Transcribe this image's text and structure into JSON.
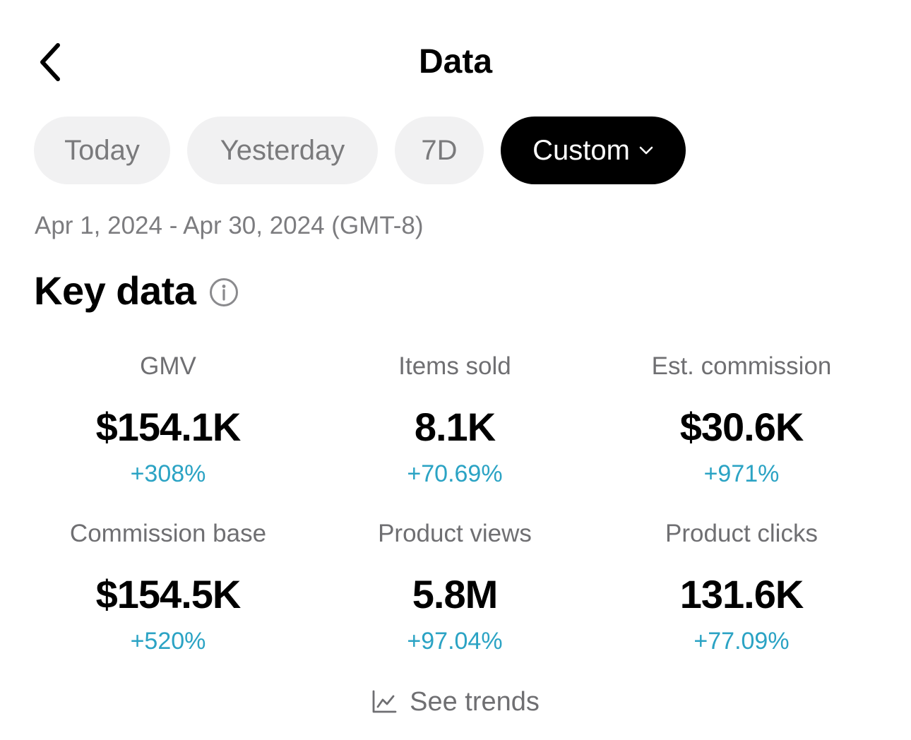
{
  "header": {
    "title": "Data",
    "back_icon": "chevron-left-icon"
  },
  "range_tabs": [
    {
      "label": "Today",
      "selected": false
    },
    {
      "label": "Yesterday",
      "selected": false
    },
    {
      "label": "7D",
      "selected": false
    },
    {
      "label": "Custom",
      "selected": true,
      "icon": "chevron-down-icon"
    }
  ],
  "date_range": "Apr 1, 2024 - Apr 30, 2024 (GMT-8)",
  "key_data": {
    "title": "Key data",
    "info_icon": "info-icon",
    "metrics": [
      {
        "label": "GMV",
        "value": "$154.1K",
        "change": "+308%"
      },
      {
        "label": "Items sold",
        "value": "8.1K",
        "change": "+70.69%"
      },
      {
        "label": "Est. commission",
        "value": "$30.6K",
        "change": "+971%"
      },
      {
        "label": "Commission base",
        "value": "$154.5K",
        "change": "+520%"
      },
      {
        "label": "Product views",
        "value": "5.8M",
        "change": "+97.04%"
      },
      {
        "label": "Product clicks",
        "value": "131.6K",
        "change": "+77.09%"
      }
    ]
  },
  "see_trends": {
    "label": "See trends",
    "icon": "line-chart-icon"
  },
  "colors": {
    "positive_change": "#2ba3c4",
    "selected_chip_bg": "#000000",
    "chip_bg": "#f1f1f2",
    "muted_text": "#6f6f72"
  }
}
